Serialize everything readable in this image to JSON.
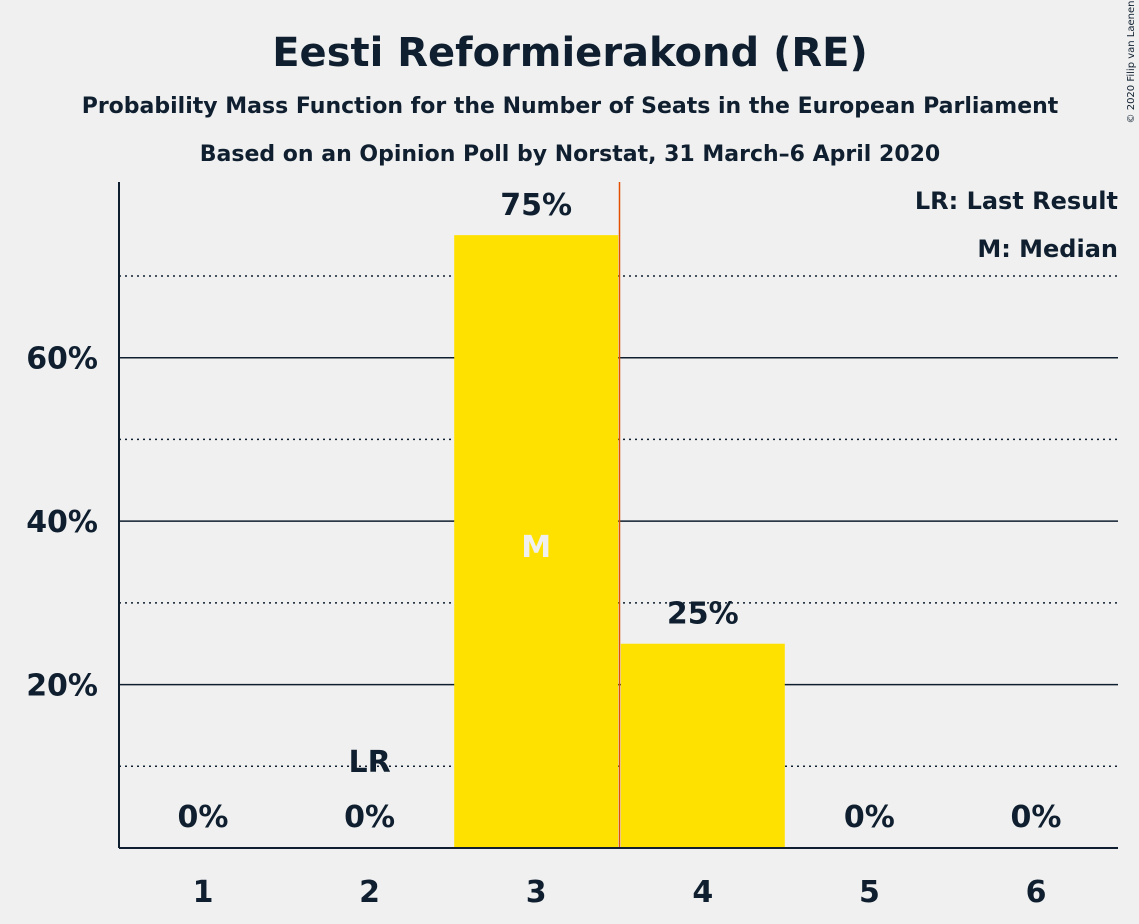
{
  "chart_data": {
    "type": "bar",
    "title": "Eesti Reformierakond (RE)",
    "subtitle": "Probability Mass Function for the Number of Seats in the European Parliament",
    "subtitle2": "Based on an Opinion Poll by Norstat, 31 March–6 April 2020",
    "copyright": "© 2020 Filip van Laenen",
    "categories": [
      "1",
      "2",
      "3",
      "4",
      "5",
      "6"
    ],
    "values": [
      0,
      0,
      75,
      25,
      0,
      0
    ],
    "value_labels": [
      "0%",
      "0%",
      "75%",
      "25%",
      "0%",
      "0%"
    ],
    "ylim": [
      0,
      80
    ],
    "yticks": [
      20,
      40,
      60
    ],
    "ytick_labels": [
      "20%",
      "40%",
      "60%"
    ],
    "minor_gridlines": [
      10,
      30,
      50,
      70
    ],
    "last_result": {
      "category": "2",
      "label": "LR"
    },
    "median": {
      "category": "3",
      "label": "M"
    },
    "median_line_between": [
      "3",
      "4"
    ],
    "legend": [
      "LR: Last Result",
      "M: Median"
    ],
    "legend_position": "top-right",
    "colors": {
      "bar": "#ffe100",
      "median_line": "#e05000",
      "text": "#0f1f2f",
      "background": "#f0f0f0"
    }
  }
}
